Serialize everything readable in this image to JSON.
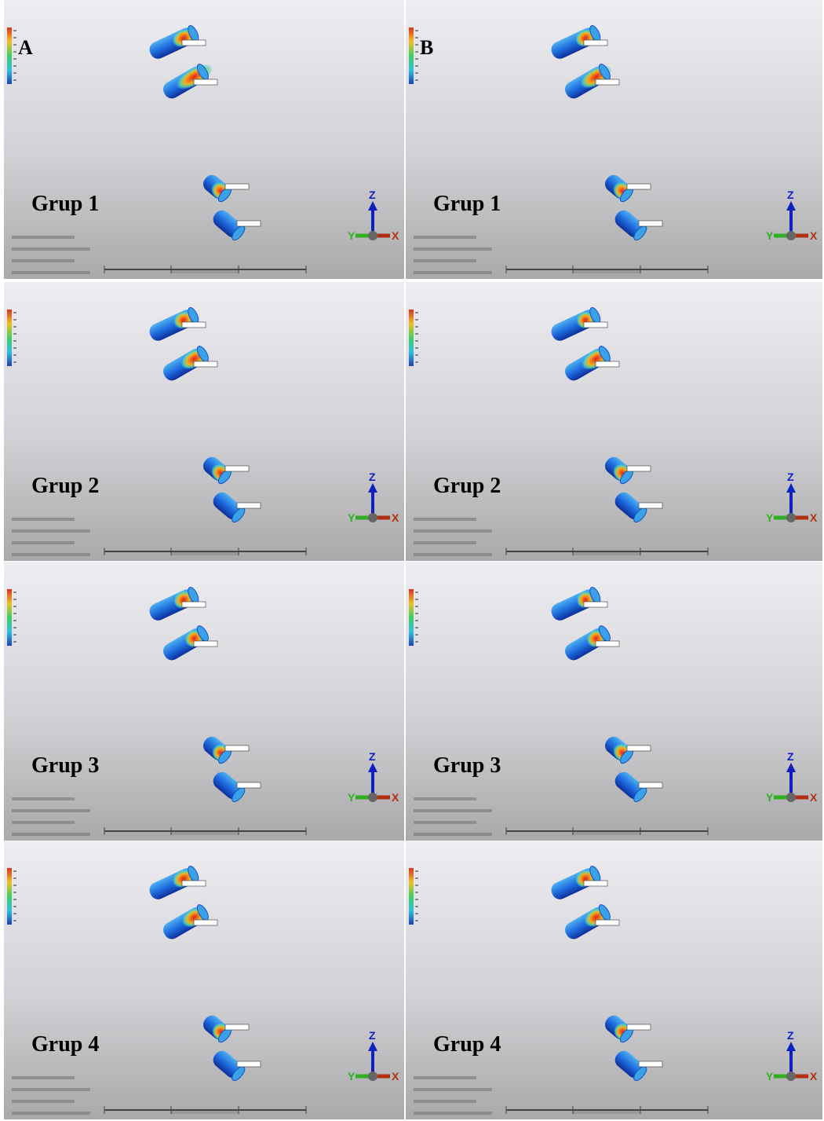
{
  "columns": [
    "A",
    "B"
  ],
  "panels": [
    {
      "label": "Grup 1"
    },
    {
      "label": "Grup 1"
    },
    {
      "label": "Grup 2"
    },
    {
      "label": "Grup 2"
    },
    {
      "label": "Grup 3"
    },
    {
      "label": "Grup 3"
    },
    {
      "label": "Grup 4"
    },
    {
      "label": "Grup 4"
    }
  ],
  "triad": {
    "z": "Z",
    "y": "Y",
    "x": "X"
  }
}
